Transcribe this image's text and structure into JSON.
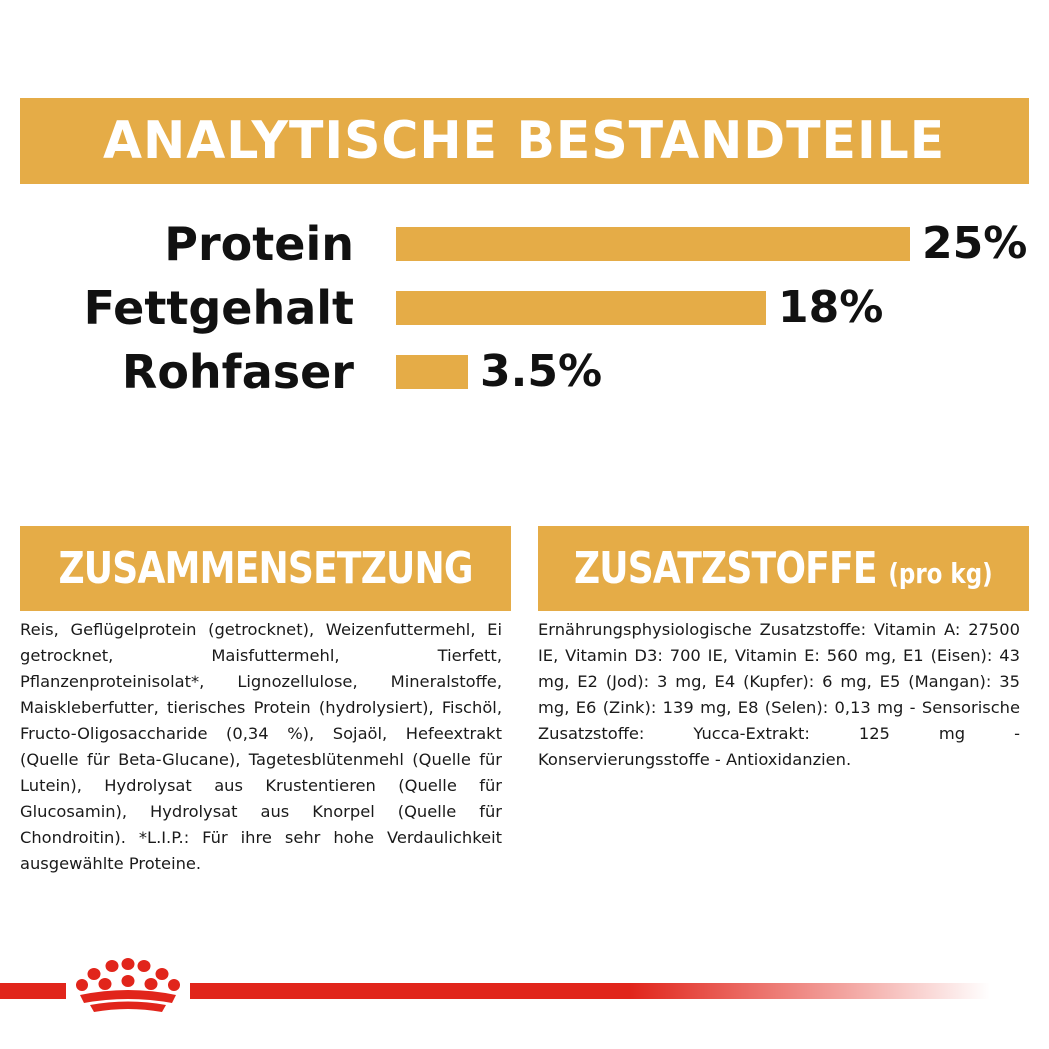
{
  "banner": {
    "title": "ANALYTISCHE BESTANDTEILE"
  },
  "nutrients": [
    {
      "label": "Protein",
      "value": "25%",
      "fraction": 1.0
    },
    {
      "label": "Fettgehalt",
      "value": "18%",
      "fraction": 0.72
    },
    {
      "label": "Rohfaser",
      "value": "3.5%",
      "fraction": 0.14
    }
  ],
  "composition": {
    "title": "ZUSAMMENSETZUNG",
    "text": "Reis, Geflügelprotein (getrocknet), Weizenfuttermehl, Ei getrocknet, Maisfuttermehl, Tierfett, Pflanzenproteinisolat*, Lignozellulose, Mineralstoffe, Maiskleberfutter, tierisches Protein (hydrolysiert), Fischöl, Fructo-Oligosaccharide (0,34 %), Sojaöl, Hefeextrakt (Quelle für Beta-Glucane), Tagetesblütenmehl (Quelle für Lutein), Hydrolysat aus Krustentieren (Quelle für Glucosamin), Hydrolysat aus Knorpel (Quelle für Chondroitin). *L.I.P.: Für ihre sehr hohe Verdaulichkeit ausgewählte Proteine."
  },
  "additives": {
    "title": "ZUSATZSTOFFE",
    "title_suffix": "(pro kg)",
    "text": "Ernährungsphysiologische Zusatzstoffe: Vitamin A: 27500 IE, Vitamin D3: 700 IE, Vitamin E: 560 mg, E1 (Eisen): 43 mg, E2 (Jod): 3 mg, E4 (Kupfer): 6 mg, E5 (Mangan): 35 mg, E6 (Zink): 139 mg, E8 (Selen): 0,13 mg - Sensorische Zusatzstoffe: Yucca-Extrakt: 125 mg - Konservierungsstoffe - Antioxidanzien."
  },
  "colors": {
    "accent": "#e5ac47",
    "brand_red": "#e1251b",
    "text": "#111111"
  },
  "icons": {
    "brand_mark": "crown-icon"
  }
}
